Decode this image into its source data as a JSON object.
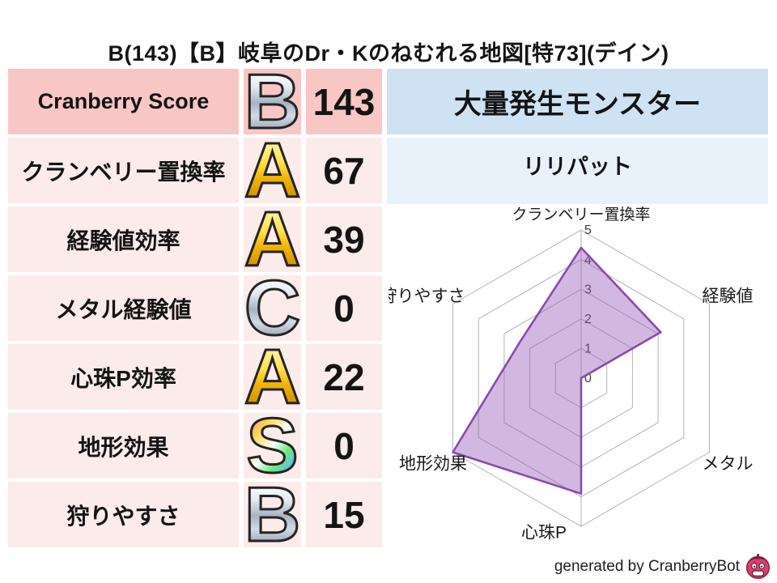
{
  "title": "B(143)【B】岐阜のDr・Kのねむれる地図[特73](デイン)",
  "score_table": {
    "rows": [
      {
        "label": "Cranberry Score",
        "grade": "B",
        "value": "143"
      },
      {
        "label": "クランベリー置換率",
        "grade": "A",
        "value": "67"
      },
      {
        "label": "経験値効率",
        "grade": "A",
        "value": "39"
      },
      {
        "label": "メタル経験値",
        "grade": "C",
        "value": "0"
      },
      {
        "label": "心珠P効率",
        "grade": "A",
        "value": "22"
      },
      {
        "label": "地形効果",
        "grade": "S",
        "value": "0"
      },
      {
        "label": "狩りやすさ",
        "grade": "B",
        "value": "15"
      }
    ]
  },
  "grade_colors": {
    "S": "rainbow",
    "A": "gold",
    "B": "silver",
    "C": "silver"
  },
  "monster_panel": {
    "header": "大量発生モンスター",
    "name": "リリパット"
  },
  "chart_data": {
    "type": "radar",
    "categories": [
      "クランベリー置換率",
      "経験値",
      "メタル",
      "心珠P",
      "地形効果",
      "狩りやすさ"
    ],
    "values": [
      4.4,
      3.1,
      0,
      3.9,
      5,
      2.4
    ],
    "ticks": [
      0,
      1,
      2,
      3,
      4,
      5
    ],
    "range": [
      0,
      5
    ],
    "grid": "hexagonal-rings",
    "legend": "none",
    "fill_color": "#9455b5",
    "fill_opacity": 0.42,
    "stroke_color": "#8c4aa8",
    "grid_color": "#b3b3b3",
    "tick_color": "#3d3d3d"
  },
  "footer": {
    "credit": "generated by CranberryBot"
  },
  "colors": {
    "header_pink": "#f9c6c6",
    "row_pink": "#fcebeb",
    "header_blue": "#cfe2f3",
    "row_blue": "#e9f1fa",
    "mascot_body": "#d8406e",
    "mascot_dark": "#7e2040"
  }
}
